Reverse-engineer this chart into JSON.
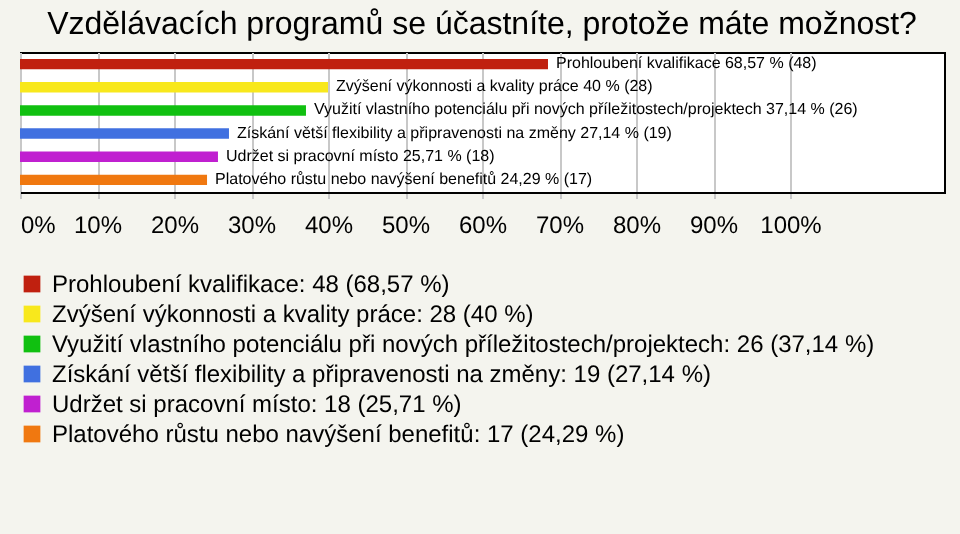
{
  "chart_data": {
    "type": "bar",
    "orientation": "horizontal",
    "title": "Vzdělávacích programů se účastníte, protože máte možnost?",
    "categories": [
      null,
      null,
      null,
      null,
      null,
      null
    ],
    "series": [
      {
        "name": "Prohloubení kvalifikace: 48 (68,57 %)",
        "color": "#c0200f",
        "values": [
          68.57,
          null,
          null,
          null,
          null,
          null
        ],
        "value_labels": [
          "Prohloubení kvalifikace 68,57 % (48)",
          null,
          null,
          null,
          null,
          null
        ]
      },
      {
        "name": "Zvýšení výkonnosti a kvality práce: 28 (40 %)",
        "color": "#f8e81c",
        "values": [
          null,
          40,
          null,
          null,
          null,
          null
        ],
        "value_labels": [
          null,
          "Zvýšení výkonnosti a kvality práce 40 % (28)",
          null,
          null,
          null,
          null
        ]
      },
      {
        "name": "Využití vlastního potenciálu při nových příležitostech/projektech: 26 (37,14 %)",
        "color": "#10c010",
        "values": [
          null,
          null,
          37.14,
          null,
          null,
          null
        ],
        "value_labels": [
          null,
          null,
          "Využití vlastního potenciálu při nových příležitostech/projektech 37,14 % (26)",
          null,
          null,
          null
        ]
      },
      {
        "name": "Získání větší flexibility a připravenosti na změny: 19 (27,14 %)",
        "color": "#4070e0",
        "values": [
          null,
          null,
          null,
          27.14,
          null,
          null
        ],
        "value_labels": [
          null,
          null,
          null,
          "Získání větší flexibility a připravenosti na změny 27,14 % (19)",
          null,
          null
        ]
      },
      {
        "name": "Udržet si pracovní místo: 18 (25,71 %)",
        "color": "#c020d0",
        "values": [
          null,
          null,
          null,
          null,
          25.71,
          null
        ],
        "value_labels": [
          null,
          null,
          null,
          null,
          "Udržet si pracovní místo 25,71 % (18)",
          null
        ]
      },
      {
        "name": "Platového růstu nebo navýšení benefitů: 17 (24,29 %)",
        "color": "#f07810",
        "values": [
          null,
          null,
          null,
          null,
          null,
          24.29
        ],
        "value_labels": [
          null,
          null,
          null,
          null,
          null,
          "Platového růstu nebo navýšení benefitů 24,29 % (17)"
        ]
      }
    ],
    "xlim": [
      0,
      120
    ],
    "xticks": [
      {
        "value": 0,
        "label": "0%"
      },
      {
        "value": 10,
        "label": "10%"
      },
      {
        "value": 20,
        "label": "20%"
      },
      {
        "value": 30,
        "label": "30%"
      },
      {
        "value": 40,
        "label": "40%"
      },
      {
        "value": 50,
        "label": "50%"
      },
      {
        "value": 60,
        "label": "60%"
      },
      {
        "value": 70,
        "label": "70%"
      },
      {
        "value": 80,
        "label": "80%"
      },
      {
        "value": 90,
        "label": "90%"
      },
      {
        "value": 100,
        "label": "100%"
      }
    ],
    "grid": "x",
    "legend": "bottom",
    "tick_labels": "x"
  }
}
